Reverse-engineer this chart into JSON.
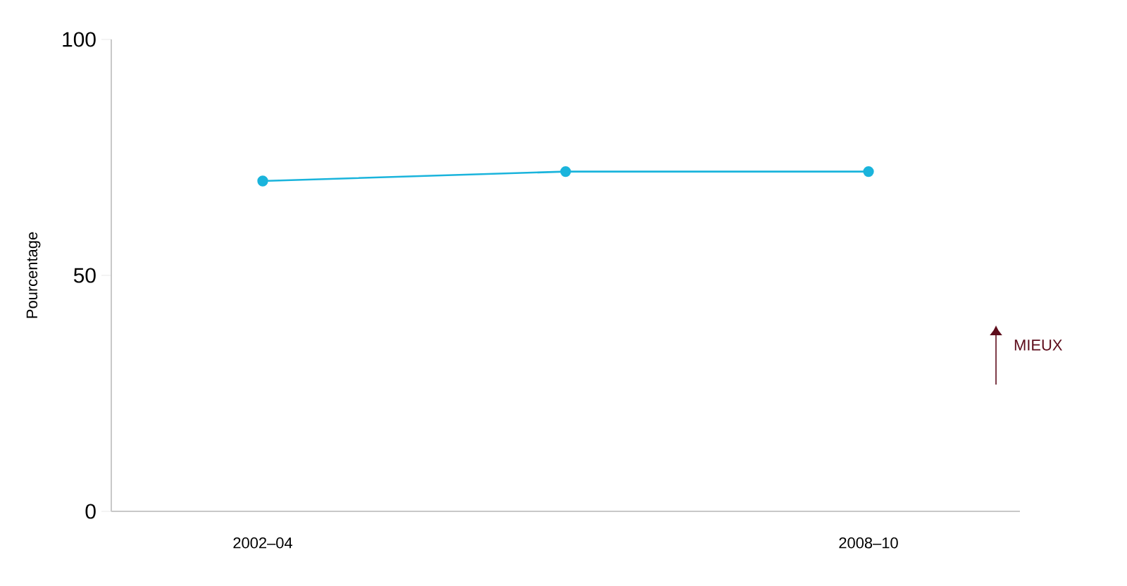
{
  "chart_data": {
    "type": "line",
    "ylabel": "Pourcentage",
    "categories": [
      "2002–04",
      null,
      "2008–10"
    ],
    "series": [
      {
        "color": "#1ab4dc",
        "values": [
          70,
          72,
          72
        ]
      }
    ],
    "ylim": [
      0,
      100
    ],
    "yticks": [
      0,
      50,
      100
    ],
    "marker": "circle",
    "grid": false,
    "annotations": [
      "MIEUX"
    ]
  }
}
